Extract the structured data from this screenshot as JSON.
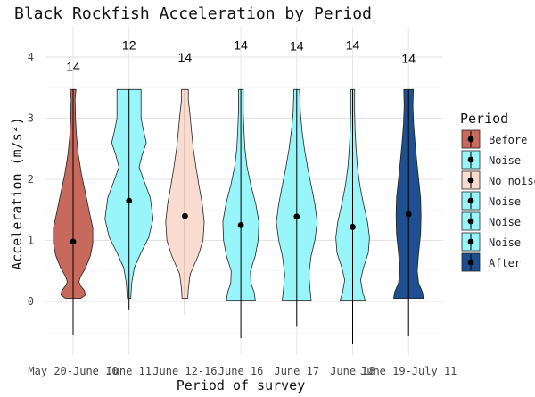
{
  "chart_data": {
    "type": "violin",
    "title": "Black Rockfish Acceleration by Period",
    "xlabel": "Period of survey",
    "ylabel": "Acceleration (m/s²)",
    "ylim": [
      -0.55,
      4.5
    ],
    "yticks": [
      0,
      1,
      2,
      3,
      4
    ],
    "grid": true,
    "legend": {
      "title": "Period",
      "placement": "right",
      "entries": [
        {
          "label": "Before",
          "color": "#c8695e"
        },
        {
          "label": "Noise",
          "color": "#98f5f9"
        },
        {
          "label": "No noise",
          "color": "#fadbd0"
        },
        {
          "label": "Noise",
          "color": "#98f5f9"
        },
        {
          "label": "Noise",
          "color": "#98f5f9"
        },
        {
          "label": "Noise",
          "color": "#98f5f9"
        },
        {
          "label": "After",
          "color": "#1d4f91"
        }
      ]
    },
    "categories": [
      "May 20-June 10",
      "June 11",
      "June 12-16",
      "June 16",
      "June 17",
      "June 18",
      "June 19-July 11"
    ],
    "series": [
      {
        "category": "May 20-June 10",
        "period": "Before",
        "color": "#c8695e",
        "mean": 0.98,
        "lower": -0.55,
        "upper": 3.47,
        "n": "14",
        "n_y": 3.85,
        "violin_min": 0.05,
        "violin_max": 3.47,
        "profile": [
          [
            0.05,
            0.32
          ],
          [
            0.1,
            0.5
          ],
          [
            0.17,
            0.48
          ],
          [
            0.25,
            0.33
          ],
          [
            0.32,
            0.24
          ],
          [
            0.4,
            0.3
          ],
          [
            0.55,
            0.52
          ],
          [
            0.75,
            0.72
          ],
          [
            0.95,
            0.82
          ],
          [
            1.2,
            0.82
          ],
          [
            1.5,
            0.66
          ],
          [
            1.8,
            0.5
          ],
          [
            2.1,
            0.34
          ],
          [
            2.4,
            0.22
          ],
          [
            2.7,
            0.14
          ],
          [
            3.0,
            0.1
          ],
          [
            3.3,
            0.08
          ],
          [
            3.47,
            0.12
          ]
        ]
      },
      {
        "category": "June 11",
        "period": "Noise",
        "color": "#98f5f9",
        "mean": 1.65,
        "lower": -0.13,
        "upper": 3.47,
        "n": "12",
        "n_y": 4.2,
        "violin_min": 0.05,
        "violin_max": 3.47,
        "profile": [
          [
            0.05,
            0.07
          ],
          [
            0.3,
            0.11
          ],
          [
            0.55,
            0.22
          ],
          [
            0.8,
            0.5
          ],
          [
            1.05,
            0.82
          ],
          [
            1.35,
            1.0
          ],
          [
            1.7,
            0.88
          ],
          [
            2.0,
            0.6
          ],
          [
            2.2,
            0.42
          ],
          [
            2.4,
            0.55
          ],
          [
            2.6,
            0.72
          ],
          [
            2.8,
            0.6
          ],
          [
            3.0,
            0.5
          ],
          [
            3.2,
            0.5
          ],
          [
            3.47,
            0.5
          ]
        ]
      },
      {
        "category": "June 12-16",
        "period": "No noise",
        "color": "#fadbd0",
        "mean": 1.4,
        "lower": -0.22,
        "upper": 3.47,
        "n": "14",
        "n_y": 4.0,
        "violin_min": 0.05,
        "violin_max": 3.47,
        "profile": [
          [
            0.05,
            0.12
          ],
          [
            0.2,
            0.14
          ],
          [
            0.45,
            0.22
          ],
          [
            0.75,
            0.55
          ],
          [
            1.0,
            0.75
          ],
          [
            1.3,
            0.8
          ],
          [
            1.6,
            0.72
          ],
          [
            1.9,
            0.58
          ],
          [
            2.2,
            0.46
          ],
          [
            2.5,
            0.35
          ],
          [
            2.8,
            0.27
          ],
          [
            3.1,
            0.2
          ],
          [
            3.3,
            0.14
          ],
          [
            3.47,
            0.14
          ]
        ]
      },
      {
        "category": "June 16",
        "period": "Noise",
        "color": "#98f5f9",
        "mean": 1.25,
        "lower": -0.6,
        "upper": 3.47,
        "n": "14",
        "n_y": 4.2,
        "violin_min": 0.02,
        "violin_max": 3.47,
        "profile": [
          [
            0.02,
            0.6
          ],
          [
            0.15,
            0.55
          ],
          [
            0.3,
            0.42
          ],
          [
            0.5,
            0.4
          ],
          [
            0.75,
            0.6
          ],
          [
            1.0,
            0.72
          ],
          [
            1.3,
            0.75
          ],
          [
            1.6,
            0.62
          ],
          [
            1.9,
            0.42
          ],
          [
            2.2,
            0.26
          ],
          [
            2.5,
            0.17
          ],
          [
            2.8,
            0.13
          ],
          [
            3.1,
            0.1
          ],
          [
            3.47,
            0.1
          ]
        ]
      },
      {
        "category": "June 17",
        "period": "Noise",
        "color": "#98f5f9",
        "mean": 1.39,
        "lower": -0.4,
        "upper": 3.47,
        "n": "14",
        "n_y": 4.18,
        "violin_min": 0.02,
        "violin_max": 3.47,
        "profile": [
          [
            0.02,
            0.6
          ],
          [
            0.2,
            0.55
          ],
          [
            0.45,
            0.5
          ],
          [
            0.75,
            0.6
          ],
          [
            1.0,
            0.75
          ],
          [
            1.3,
            0.85
          ],
          [
            1.6,
            0.75
          ],
          [
            1.9,
            0.6
          ],
          [
            2.2,
            0.45
          ],
          [
            2.5,
            0.32
          ],
          [
            2.8,
            0.22
          ],
          [
            3.1,
            0.15
          ],
          [
            3.47,
            0.12
          ]
        ]
      },
      {
        "category": "June 18",
        "period": "Noise",
        "color": "#98f5f9",
        "mean": 1.22,
        "lower": -0.7,
        "upper": 3.47,
        "n": "14",
        "n_y": 4.2,
        "violin_min": 0.02,
        "violin_max": 3.47,
        "profile": [
          [
            0.02,
            0.52
          ],
          [
            0.15,
            0.42
          ],
          [
            0.35,
            0.33
          ],
          [
            0.55,
            0.45
          ],
          [
            0.8,
            0.65
          ],
          [
            1.05,
            0.7
          ],
          [
            1.3,
            0.62
          ],
          [
            1.6,
            0.45
          ],
          [
            1.9,
            0.3
          ],
          [
            2.2,
            0.2
          ],
          [
            2.5,
            0.14
          ],
          [
            2.8,
            0.1
          ],
          [
            3.1,
            0.08
          ],
          [
            3.47,
            0.08
          ]
        ]
      },
      {
        "category": "June 19-July 11",
        "period": "After",
        "color": "#1d4f91",
        "mean": 1.43,
        "lower": -0.57,
        "upper": 3.47,
        "n": "14",
        "n_y": 3.98,
        "violin_min": 0.05,
        "violin_max": 3.47,
        "profile": [
          [
            0.05,
            0.62
          ],
          [
            0.15,
            0.58
          ],
          [
            0.3,
            0.42
          ],
          [
            0.5,
            0.36
          ],
          [
            0.8,
            0.42
          ],
          [
            1.1,
            0.5
          ],
          [
            1.4,
            0.52
          ],
          [
            1.7,
            0.5
          ],
          [
            2.0,
            0.42
          ],
          [
            2.3,
            0.34
          ],
          [
            2.6,
            0.27
          ],
          [
            2.9,
            0.21
          ],
          [
            3.2,
            0.18
          ],
          [
            3.47,
            0.2
          ]
        ]
      }
    ]
  }
}
